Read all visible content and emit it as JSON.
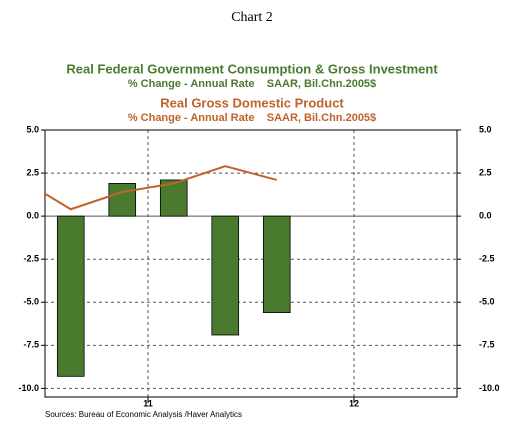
{
  "chart_data": {
    "type": "bar_line",
    "title": "Chart 2",
    "series": [
      {
        "name": "Real Federal Government Consumption & Gross Investment",
        "units": "% Change - Annual Rate    SAAR, Bil.Chn.2005$",
        "type": "bar",
        "color": "#4a7a2e",
        "x": [
          0.5,
          1.5,
          2.5,
          3.5,
          4.5
        ],
        "values": [
          -9.3,
          1.9,
          2.1,
          -6.9,
          -5.6
        ]
      },
      {
        "name": "Real Gross Domestic Product",
        "units": "% Change - Annual Rate    SAAR, Bil.Chn.2005$",
        "type": "line",
        "color": "#c0622b",
        "x": [
          0,
          0.5,
          1.5,
          2.5,
          3.5,
          4.5
        ],
        "values": [
          1.3,
          0.4,
          1.4,
          1.9,
          2.9,
          2.1
        ]
      }
    ],
    "xlim": [
      0,
      8
    ],
    "xticks": [
      {
        "value": 2,
        "label": "11"
      },
      {
        "value": 6,
        "label": "12"
      }
    ],
    "ylim": [
      -10.5,
      5
    ],
    "yticks": [
      {
        "value": 5,
        "label": "5.0"
      },
      {
        "value": 2.5,
        "label": "2.5"
      },
      {
        "value": 0,
        "label": "0.0"
      },
      {
        "value": -2.5,
        "label": "-2.5"
      },
      {
        "value": -5,
        "label": "-5.0"
      },
      {
        "value": -7.5,
        "label": "-7.5"
      },
      {
        "value": -10,
        "label": "-10.0"
      }
    ],
    "grid": true,
    "source": "Sources:  Bureau of Economic Analysis /Haver Analytics"
  }
}
